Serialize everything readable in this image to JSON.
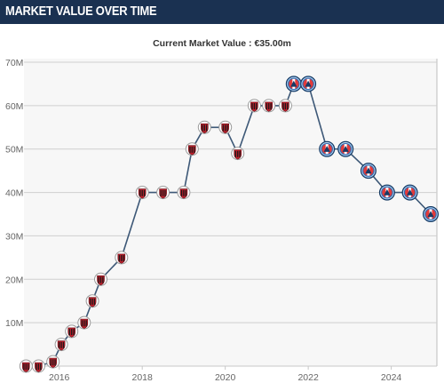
{
  "header": {
    "title": "MARKET VALUE OVER TIME"
  },
  "chart_data": {
    "type": "line",
    "title": "Current Market Value : €35.00m",
    "xlabel": "",
    "ylabel": "",
    "x_ticks": [
      "2016",
      "2018",
      "2020",
      "2022",
      "2024"
    ],
    "y_ticks": [
      "10M",
      "20M",
      "30M",
      "40M",
      "50M",
      "60M",
      "70M"
    ],
    "xlim": [
      2015.15,
      2025.1
    ],
    "ylim": [
      0,
      70
    ],
    "grid": true,
    "series": [
      {
        "x": [
          2015.2,
          2015.5,
          2015.85,
          2016.05,
          2016.3,
          2016.6,
          2016.8,
          2017.0,
          2017.5,
          2018.0,
          2018.5,
          2019.0,
          2019.2,
          2019.5,
          2020.0,
          2020.3,
          2020.7,
          2021.05,
          2021.45,
          2021.65,
          2022.0,
          2022.45,
          2022.9,
          2023.45,
          2023.9,
          2024.45,
          2024.95
        ],
        "values": [
          0,
          0,
          1,
          5,
          8,
          10,
          15,
          20,
          25,
          40,
          40,
          40,
          50,
          55,
          55,
          49,
          60,
          60,
          60,
          65,
          65,
          50,
          50,
          45,
          40,
          40,
          35
        ],
        "markers": [
          "club-a-crest",
          "club-a-crest",
          "club-a-crest",
          "club-a-crest",
          "club-a-crest",
          "club-a-crest",
          "club-a-crest",
          "club-a-crest",
          "club-a-crest",
          "club-a-crest",
          "club-a-crest",
          "club-a-crest",
          "club-a-crest",
          "club-a-crest",
          "club-a-crest",
          "club-a-crest",
          "club-a-crest",
          "club-a-crest",
          "club-a-crest",
          "club-b-crest",
          "club-b-crest",
          "club-b-crest",
          "club-b-crest",
          "club-b-crest",
          "club-b-crest",
          "club-b-crest",
          "club-b-crest"
        ]
      }
    ]
  },
  "colors": {
    "header_bg": "#1a3151",
    "line": "#3d5877",
    "club_a": "#c21f2c",
    "club_b": "#2d6fb6",
    "grid": "#cfcfcf"
  }
}
